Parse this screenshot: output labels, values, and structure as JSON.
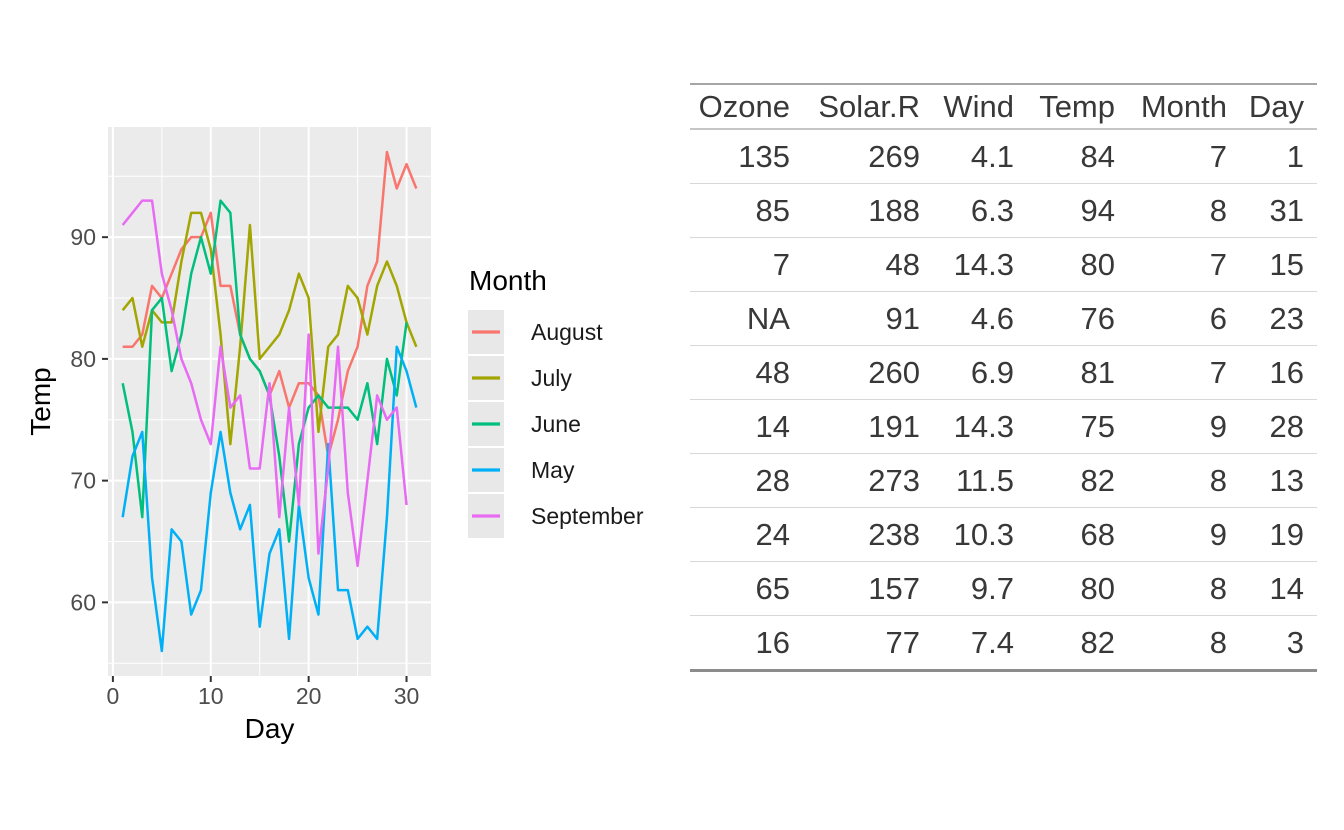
{
  "page": {
    "background": "#FFFFFF"
  },
  "chart_data": [
    {
      "type": "line",
      "title": "",
      "xlabel": "Day",
      "ylabel": "Temp",
      "xlim": [
        -0.5,
        32.5
      ],
      "ylim": [
        53.95,
        99.05
      ],
      "x_ticks": [
        0,
        10,
        20,
        30
      ],
      "x_minor_ticks": [
        5,
        15,
        25
      ],
      "y_ticks": [
        60,
        70,
        80,
        90
      ],
      "y_minor_ticks": [
        55,
        65,
        75,
        85,
        95
      ],
      "grid": "on",
      "panel_fill": "#EBEBEB",
      "gridline_color": "#FFFFFF",
      "tick_color": "#333333",
      "tick_label_color": "#4D4D4D",
      "axis_title_color": "#000000",
      "legend_position": "right",
      "legend_title": "Month",
      "legend_key_fill": "#E8E8E8",
      "legend_label_color": "#1A1A1A",
      "x_start_day": 1,
      "series": [
        {
          "name": "August",
          "color": "#F8766D",
          "values": [
            81,
            81,
            82,
            86,
            85,
            87,
            89,
            90,
            90,
            92,
            86,
            86,
            82,
            80,
            79,
            77,
            79,
            76,
            78,
            78,
            77,
            72,
            75,
            79,
            81,
            86,
            88,
            97,
            94,
            96,
            94
          ]
        },
        {
          "name": "July",
          "color": "#A3A500",
          "values": [
            84,
            85,
            81,
            84,
            83,
            83,
            88,
            92,
            92,
            89,
            82,
            73,
            81,
            91,
            80,
            81,
            82,
            84,
            87,
            85,
            74,
            81,
            82,
            86,
            85,
            82,
            86,
            88,
            86,
            83,
            81
          ]
        },
        {
          "name": "June",
          "color": "#00BF7D",
          "values": [
            78,
            74,
            67,
            84,
            85,
            79,
            82,
            87,
            90,
            87,
            93,
            92,
            82,
            80,
            79,
            77,
            72,
            65,
            73,
            76,
            77,
            76,
            76,
            76,
            75,
            78,
            73,
            80,
            77,
            83
          ]
        },
        {
          "name": "May",
          "color": "#00B0F6",
          "values": [
            67,
            72,
            74,
            62,
            56,
            66,
            65,
            59,
            61,
            69,
            74,
            69,
            66,
            68,
            58,
            64,
            66,
            57,
            68,
            62,
            59,
            73,
            61,
            61,
            57,
            58,
            57,
            67,
            81,
            79,
            76
          ]
        },
        {
          "name": "September",
          "color": "#E76BF3",
          "values": [
            91,
            92,
            93,
            93,
            87,
            84,
            80,
            78,
            75,
            73,
            81,
            76,
            77,
            71,
            71,
            78,
            67,
            76,
            68,
            82,
            64,
            71,
            81,
            69,
            63,
            70,
            77,
            75,
            76,
            68
          ]
        }
      ]
    },
    {
      "type": "table",
      "columns": [
        "Ozone",
        "Solar.R",
        "Wind",
        "Temp",
        "Month",
        "Day"
      ],
      "rows": [
        [
          "135",
          "269",
          "4.1",
          "84",
          "7",
          "1"
        ],
        [
          "85",
          "188",
          "6.3",
          "94",
          "8",
          "31"
        ],
        [
          "7",
          "48",
          "14.3",
          "80",
          "7",
          "15"
        ],
        [
          "NA",
          "91",
          "4.6",
          "76",
          "6",
          "23"
        ],
        [
          "48",
          "260",
          "6.9",
          "81",
          "7",
          "16"
        ],
        [
          "14",
          "191",
          "14.3",
          "75",
          "9",
          "28"
        ],
        [
          "28",
          "273",
          "11.5",
          "82",
          "8",
          "13"
        ],
        [
          "24",
          "238",
          "10.3",
          "68",
          "9",
          "19"
        ],
        [
          "65",
          "157",
          "9.7",
          "80",
          "8",
          "14"
        ],
        [
          "16",
          "77",
          "7.4",
          "82",
          "8",
          "3"
        ]
      ]
    }
  ]
}
